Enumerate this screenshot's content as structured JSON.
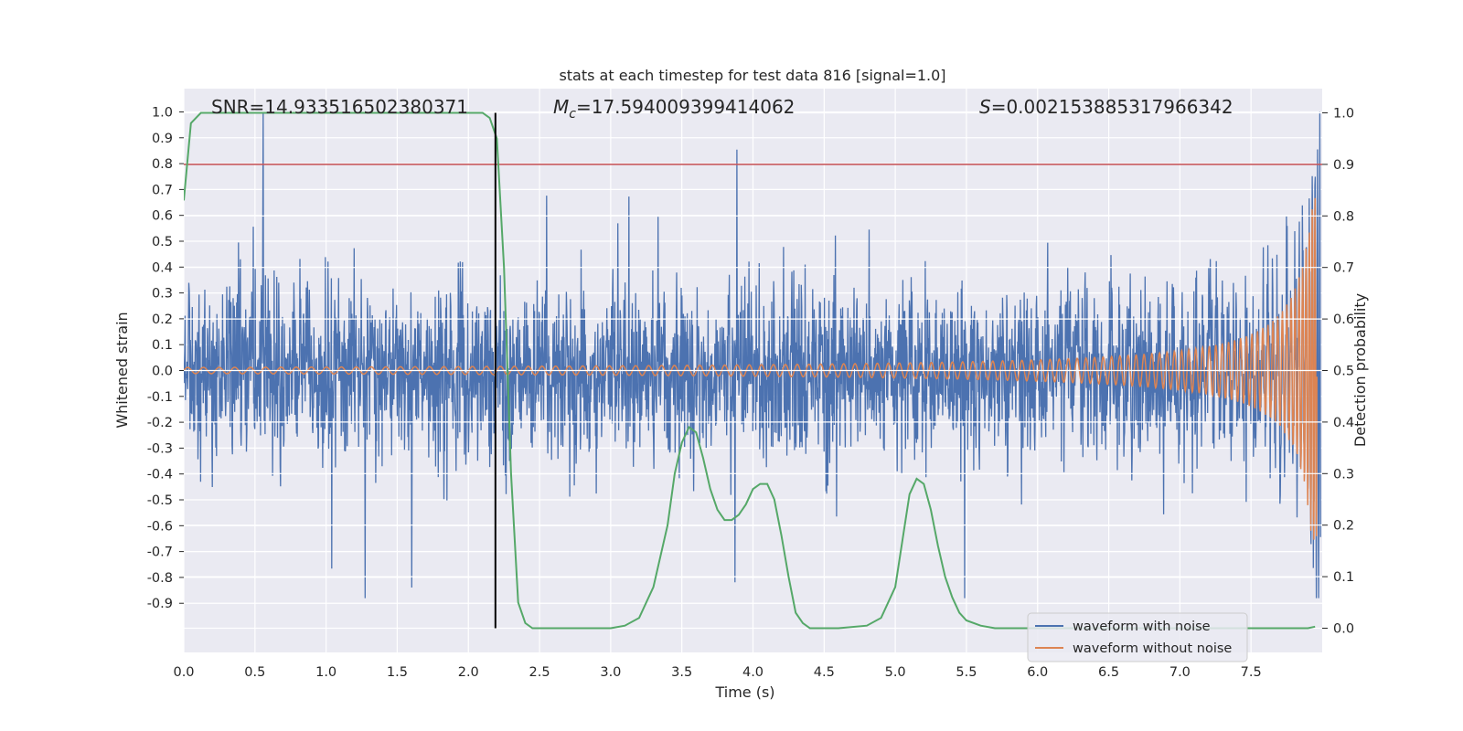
{
  "chart_data": {
    "type": "line",
    "title": "stats at each timestep for test data 816 [signal=1.0]",
    "xlabel": "Time (s)",
    "ylabel": "Whitened strain",
    "y2label": "Detection probability",
    "xlim": [
      0.0,
      8.0
    ],
    "ylim": [
      -1.09,
      1.09
    ],
    "y2lim": [
      -0.047,
      1.047
    ],
    "xticks": [
      "0.0",
      "0.5",
      "1.0",
      "1.5",
      "2.0",
      "2.5",
      "3.0",
      "3.5",
      "4.0",
      "4.5",
      "5.0",
      "5.5",
      "6.0",
      "6.5",
      "7.0",
      "7.5"
    ],
    "yticks": [
      "1.0",
      "0.9",
      "0.8",
      "0.7",
      "0.6",
      "0.5",
      "0.4",
      "0.3",
      "0.2",
      "0.1",
      "0.0",
      "-0.1",
      "-0.2",
      "-0.3",
      "-0.4",
      "-0.5",
      "-0.6",
      "-0.7",
      "-0.8",
      "-0.9"
    ],
    "y2ticks": [
      "1.0",
      "0.9",
      "0.8",
      "0.7",
      "0.6",
      "0.5",
      "0.4",
      "0.3",
      "0.2",
      "0.1",
      "0.0"
    ],
    "grid": true,
    "legend_position": "lower-right",
    "annotations": {
      "snr": "SNR=14.933516502380371",
      "mc_value": "=17.594009399414062",
      "s_value": "=0.002153885317966342"
    },
    "vertical_line_x": 2.19,
    "threshold_y2": 0.9,
    "series": [
      {
        "name": "waveform with noise",
        "color": "#4c72b0",
        "axis": "left",
        "description": "noisy whitened strain, amplitude ~0.3-0.6 with spikes up to ~1.0"
      },
      {
        "name": "waveform without noise",
        "color": "#dd8452",
        "axis": "left",
        "description": "chirp signal growing from ~0.01 to ~0.7 at 7.95 s"
      },
      {
        "color": "#55a868",
        "axis": "right",
        "x": [
          0.0,
          0.05,
          0.12,
          0.2,
          0.5,
          1.0,
          1.5,
          2.0,
          2.1,
          2.15,
          2.2,
          2.25,
          2.3,
          2.35,
          2.4,
          2.45,
          2.5,
          2.6,
          3.0,
          3.1,
          3.2,
          3.3,
          3.4,
          3.45,
          3.5,
          3.55,
          3.6,
          3.65,
          3.7,
          3.75,
          3.8,
          3.85,
          3.9,
          3.95,
          4.0,
          4.05,
          4.1,
          4.15,
          4.2,
          4.25,
          4.3,
          4.35,
          4.4,
          4.45,
          4.5,
          4.6,
          4.8,
          4.9,
          5.0,
          5.05,
          5.1,
          5.15,
          5.2,
          5.25,
          5.3,
          5.35,
          5.4,
          5.45,
          5.5,
          5.6,
          5.7,
          5.8,
          6.0,
          6.5,
          7.0,
          7.5,
          7.8,
          7.9,
          7.95
        ],
        "values": [
          0.83,
          0.98,
          1.0,
          1.0,
          1.0,
          1.0,
          1.0,
          1.0,
          1.0,
          0.99,
          0.95,
          0.7,
          0.3,
          0.05,
          0.01,
          0.0,
          0.0,
          0.0,
          0.0,
          0.005,
          0.02,
          0.08,
          0.2,
          0.3,
          0.36,
          0.39,
          0.38,
          0.33,
          0.27,
          0.23,
          0.21,
          0.21,
          0.22,
          0.24,
          0.27,
          0.28,
          0.28,
          0.25,
          0.18,
          0.1,
          0.03,
          0.01,
          0.0,
          0.0,
          0.0,
          0.0,
          0.005,
          0.02,
          0.08,
          0.17,
          0.26,
          0.29,
          0.28,
          0.23,
          0.16,
          0.1,
          0.06,
          0.03,
          0.015,
          0.005,
          0.0,
          0.0,
          0.0,
          0.0,
          0.0,
          0.0,
          0.0,
          0.0,
          0.003
        ]
      },
      {
        "color": "#c44e52",
        "axis": "right",
        "x": [
          0.0,
          8.0
        ],
        "values": [
          0.9,
          0.9
        ]
      }
    ]
  }
}
